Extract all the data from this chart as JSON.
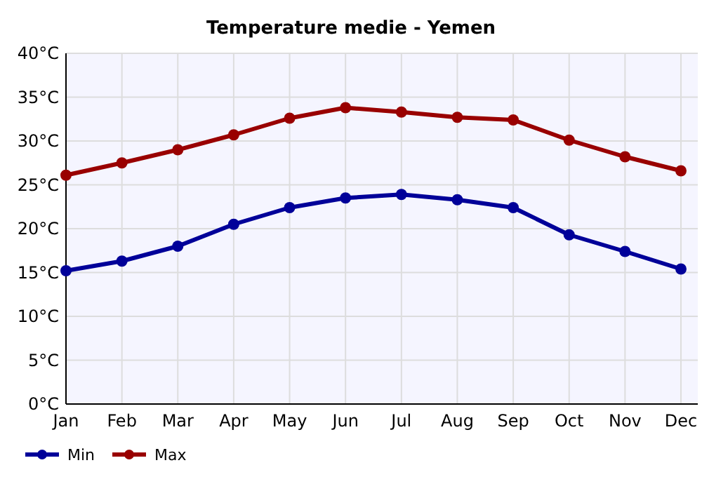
{
  "chart_data": {
    "type": "line",
    "title": "Temperature medie - Yemen",
    "categories": [
      "Jan",
      "Feb",
      "Mar",
      "Apr",
      "May",
      "Jun",
      "Jul",
      "Aug",
      "Sep",
      "Oct",
      "Nov",
      "Dec"
    ],
    "series": [
      {
        "name": "Min",
        "color": "#000099",
        "values": [
          15.2,
          16.3,
          18.0,
          20.5,
          22.4,
          23.5,
          23.9,
          23.3,
          22.4,
          19.3,
          17.4,
          15.4
        ]
      },
      {
        "name": "Max",
        "color": "#990000",
        "values": [
          26.1,
          27.5,
          29.0,
          30.7,
          32.6,
          33.8,
          33.3,
          32.7,
          32.4,
          30.1,
          28.2,
          26.6
        ]
      }
    ],
    "ylim": [
      0,
      40
    ],
    "yticks": [
      {
        "value": 0,
        "label": "0°C"
      },
      {
        "value": 5,
        "label": "5°C"
      },
      {
        "value": 10,
        "label": "10°C"
      },
      {
        "value": 15,
        "label": "15°C"
      },
      {
        "value": 20,
        "label": "20°C"
      },
      {
        "value": 25,
        "label": "25°C"
      },
      {
        "value": 30,
        "label": "30°C"
      },
      {
        "value": 35,
        "label": "35°C"
      },
      {
        "value": 40,
        "label": "40°C"
      }
    ],
    "grid": true,
    "legend": "bottom left",
    "marker": "circle",
    "line_style": "solid"
  }
}
